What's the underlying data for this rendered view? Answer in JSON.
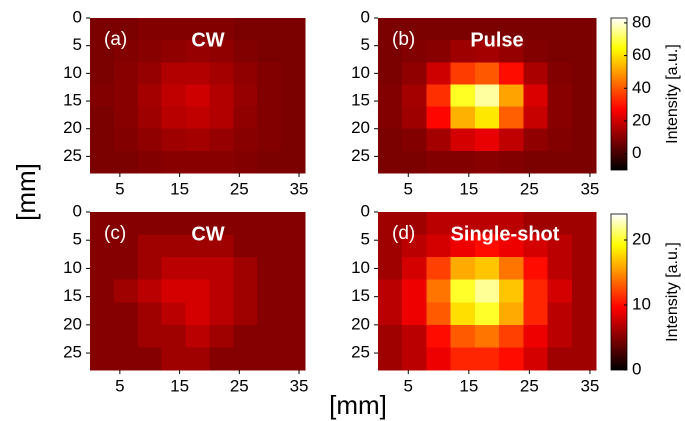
{
  "labels": {
    "x": "[mm]",
    "y": "[mm]"
  },
  "chart_data": [
    {
      "type": "heatmap",
      "panel_label": "(a)",
      "title": "CW",
      "colormap": "hot",
      "x": [
        2,
        6,
        10,
        14,
        18,
        22,
        26,
        30,
        34
      ],
      "y": [
        2,
        6,
        10,
        14,
        18,
        22,
        26
      ],
      "z": [
        [
          8,
          8,
          9,
          9,
          9,
          9,
          8,
          8,
          8
        ],
        [
          8,
          9,
          10,
          11,
          12,
          11,
          9,
          8,
          8
        ],
        [
          8,
          10,
          12,
          16,
          16,
          14,
          11,
          9,
          8
        ],
        [
          9,
          10,
          14,
          18,
          20,
          16,
          12,
          9,
          8
        ],
        [
          8,
          10,
          13,
          17,
          18,
          16,
          11,
          9,
          8
        ],
        [
          8,
          9,
          11,
          13,
          14,
          12,
          10,
          9,
          8
        ],
        [
          8,
          8,
          9,
          10,
          10,
          10,
          9,
          8,
          8
        ]
      ],
      "zlim": [
        -10,
        83
      ],
      "xlim": [
        0,
        36
      ],
      "ylim": [
        0,
        28
      ],
      "y_inverted": true,
      "xticks": [
        5,
        15,
        25,
        35
      ],
      "yticks": [
        0,
        5,
        10,
        15,
        20,
        25
      ]
    },
    {
      "type": "heatmap",
      "panel_label": "(b)",
      "title": "Pulse",
      "colormap": "hot",
      "x": [
        2,
        6,
        10,
        14,
        18,
        22,
        26,
        30,
        34
      ],
      "y": [
        2,
        6,
        10,
        14,
        18,
        22,
        26
      ],
      "z": [
        [
          8,
          8,
          8,
          8,
          8,
          8,
          8,
          8,
          8
        ],
        [
          8,
          9,
          10,
          13,
          14,
          12,
          9,
          8,
          8
        ],
        [
          8,
          11,
          20,
          36,
          40,
          29,
          15,
          9,
          8
        ],
        [
          9,
          14,
          34,
          67,
          76,
          51,
          22,
          10,
          8
        ],
        [
          9,
          13,
          28,
          53,
          61,
          41,
          19,
          10,
          8
        ],
        [
          8,
          9,
          14,
          21,
          24,
          18,
          11,
          9,
          8
        ],
        [
          8,
          8,
          9,
          9,
          10,
          9,
          8,
          8,
          8
        ]
      ],
      "zlim": [
        -10,
        83
      ],
      "xlim": [
        0,
        36
      ],
      "ylim": [
        0,
        28
      ],
      "y_inverted": true,
      "xticks": [
        5,
        15,
        25,
        35
      ],
      "yticks": [
        0,
        5,
        10,
        15,
        20,
        25
      ],
      "colorbar": {
        "label": "Intensity [a.u.]",
        "ticks": [
          0,
          20,
          40,
          60,
          80
        ]
      }
    },
    {
      "type": "heatmap",
      "panel_label": "(c)",
      "title": "CW",
      "colormap": "hot",
      "x": [
        2,
        6,
        10,
        14,
        18,
        22,
        26,
        30,
        34
      ],
      "y": [
        2,
        6,
        10,
        14,
        18,
        22,
        26
      ],
      "z": [
        [
          5,
          5,
          5,
          5,
          5,
          5,
          5,
          5,
          5
        ],
        [
          5,
          5,
          6,
          6,
          6,
          6,
          5,
          5,
          5
        ],
        [
          5,
          5,
          6,
          7,
          7,
          7,
          6,
          5,
          5
        ],
        [
          5,
          6,
          7,
          8,
          8,
          7,
          6,
          5,
          5
        ],
        [
          5,
          5,
          6,
          7,
          8,
          7,
          6,
          5,
          5
        ],
        [
          5,
          5,
          6,
          6,
          7,
          6,
          5,
          5,
          5
        ],
        [
          5,
          5,
          5,
          6,
          6,
          5,
          5,
          5,
          5
        ]
      ],
      "zlim": [
        0,
        24
      ],
      "xlim": [
        0,
        36
      ],
      "ylim": [
        0,
        28
      ],
      "y_inverted": true,
      "xticks": [
        5,
        15,
        25,
        35
      ],
      "yticks": [
        0,
        5,
        10,
        15,
        20,
        25
      ]
    },
    {
      "type": "heatmap",
      "panel_label": "(d)",
      "title": "Single-shot",
      "colormap": "hot",
      "x": [
        2,
        6,
        10,
        14,
        18,
        22,
        26,
        30,
        34
      ],
      "y": [
        2,
        6,
        10,
        14,
        18,
        22,
        26
      ],
      "z": [
        [
          6,
          6,
          7,
          7,
          7,
          7,
          6,
          6,
          6
        ],
        [
          6,
          7,
          8,
          9,
          10,
          9,
          8,
          7,
          6
        ],
        [
          6,
          8,
          12,
          16,
          17,
          14,
          10,
          7,
          6
        ],
        [
          7,
          9,
          14,
          20,
          22,
          17,
          11,
          8,
          6
        ],
        [
          7,
          9,
          13,
          18,
          20,
          16,
          11,
          7,
          6
        ],
        [
          6,
          7,
          10,
          13,
          14,
          12,
          9,
          7,
          6
        ],
        [
          6,
          7,
          9,
          11,
          11,
          10,
          8,
          6,
          6
        ]
      ],
      "zlim": [
        0,
        24
      ],
      "xlim": [
        0,
        36
      ],
      "ylim": [
        0,
        28
      ],
      "y_inverted": true,
      "xticks": [
        5,
        15,
        25,
        35
      ],
      "yticks": [
        0,
        5,
        10,
        15,
        20,
        25
      ],
      "colorbar": {
        "label": "Intensity [a.u.]",
        "ticks": [
          0,
          10,
          20
        ]
      }
    }
  ]
}
